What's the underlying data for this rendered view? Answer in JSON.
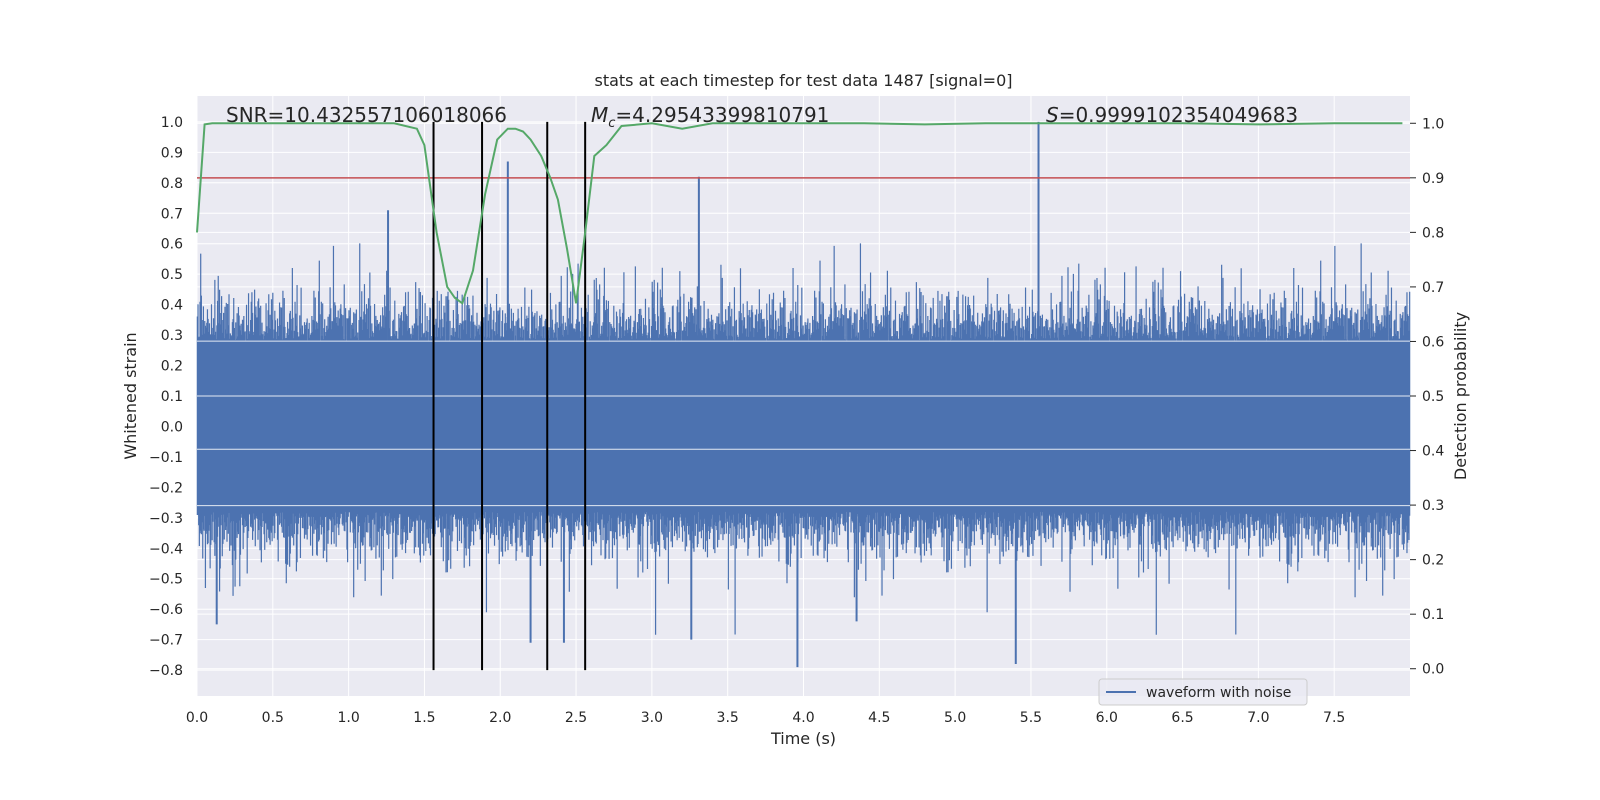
{
  "chart_data": {
    "type": "line",
    "title": "stats at each timestep for test data 1487 [signal=0]",
    "xlabel": "Time (s)",
    "ylabel": "Whitened strain",
    "ylabel_right": "Detection probability",
    "xlim": [
      0.0,
      8.0
    ],
    "ylim": [
      -0.885,
      1.085
    ],
    "ylim_right": [
      -0.05,
      1.05
    ],
    "x_ticks": [
      0.0,
      0.5,
      1.0,
      1.5,
      2.0,
      2.5,
      3.0,
      3.5,
      4.0,
      4.5,
      5.0,
      5.5,
      6.0,
      6.5,
      7.0,
      7.5
    ],
    "x_tick_labels": [
      "0.0",
      "0.5",
      "1.0",
      "1.5",
      "2.0",
      "2.5",
      "3.0",
      "3.5",
      "4.0",
      "4.5",
      "5.0",
      "5.5",
      "6.0",
      "6.5",
      "7.0",
      "7.5"
    ],
    "y_ticks": [
      -0.8,
      -0.7,
      -0.6,
      -0.5,
      -0.4,
      -0.3,
      -0.2,
      -0.1,
      0.0,
      0.1,
      0.2,
      0.3,
      0.4,
      0.5,
      0.6,
      0.7,
      0.8,
      0.9,
      1.0
    ],
    "y_tick_labels": [
      "−0.8",
      "−0.7",
      "−0.6",
      "−0.5",
      "−0.4",
      "−0.3",
      "−0.2",
      "−0.1",
      "0.0",
      "0.1",
      "0.2",
      "0.3",
      "0.4",
      "0.5",
      "0.6",
      "0.7",
      "0.8",
      "0.9",
      "1.0"
    ],
    "y_right_ticks": [
      0.0,
      0.1,
      0.2,
      0.3,
      0.4,
      0.5,
      0.6,
      0.7,
      0.8,
      0.9,
      1.0
    ],
    "y_right_tick_labels": [
      "0.0",
      "0.1",
      "0.2",
      "0.3",
      "0.4",
      "0.5",
      "0.6",
      "0.7",
      "0.8",
      "0.9",
      "1.0"
    ],
    "grid": true,
    "legend_position": "lower-right",
    "annotations": {
      "snr": "SNR=10.432557106018066",
      "mc_symbol": "M",
      "mc_subscript": "c",
      "mc_value": "=4.29543399810791",
      "s_symbol": "S",
      "s_value": "=0.9999102354049683"
    },
    "series": [
      {
        "name": "waveform with noise",
        "axis": "left",
        "color": "#4c72b0",
        "kind": "noise",
        "typical_amplitude": 0.28,
        "max_positive": 1.0,
        "max_negative": -0.79,
        "notable_peaks": [
          {
            "x": 5.55,
            "y": 1.0
          },
          {
            "x": 3.31,
            "y": 0.82
          },
          {
            "x": 2.05,
            "y": 0.87
          },
          {
            "x": 1.26,
            "y": 0.71
          },
          {
            "x": 3.96,
            "y": -0.79
          },
          {
            "x": 5.4,
            "y": -0.78
          },
          {
            "x": 2.2,
            "y": -0.71
          },
          {
            "x": 3.26,
            "y": -0.7
          },
          {
            "x": 2.42,
            "y": -0.71
          },
          {
            "x": 0.13,
            "y": -0.65
          },
          {
            "x": 4.35,
            "y": -0.64
          }
        ]
      },
      {
        "name": "Detection probability",
        "axis": "right",
        "color": "#55a868",
        "x": [
          0.0,
          0.05,
          0.1,
          0.3,
          0.6,
          1.0,
          1.3,
          1.45,
          1.5,
          1.58,
          1.65,
          1.7,
          1.75,
          1.82,
          1.9,
          1.98,
          2.05,
          2.1,
          2.15,
          2.2,
          2.27,
          2.33,
          2.38,
          2.44,
          2.5,
          2.56,
          2.62,
          2.7,
          2.8,
          3.0,
          3.2,
          3.4,
          3.6,
          4.0,
          4.4,
          4.8,
          5.2,
          5.6,
          6.0,
          6.5,
          7.0,
          7.5,
          7.95
        ],
        "y": [
          0.8,
          0.998,
          1.0,
          1.0,
          1.0,
          1.0,
          1.0,
          0.99,
          0.96,
          0.8,
          0.7,
          0.68,
          0.67,
          0.73,
          0.87,
          0.97,
          0.99,
          0.99,
          0.985,
          0.97,
          0.94,
          0.9,
          0.86,
          0.77,
          0.67,
          0.8,
          0.94,
          0.96,
          0.995,
          1.0,
          0.99,
          1.0,
          1.0,
          1.0,
          1.0,
          0.998,
          1.0,
          1.0,
          1.0,
          1.0,
          0.998,
          1.0,
          1.0
        ]
      }
    ],
    "threshold_line": {
      "axis": "right",
      "value": 0.9,
      "color": "#c44e52"
    },
    "vertical_lines": {
      "x": [
        1.56,
        1.88,
        2.31,
        2.56
      ],
      "color": "#000000",
      "y_from": -0.8,
      "y_to": 1.0
    }
  }
}
